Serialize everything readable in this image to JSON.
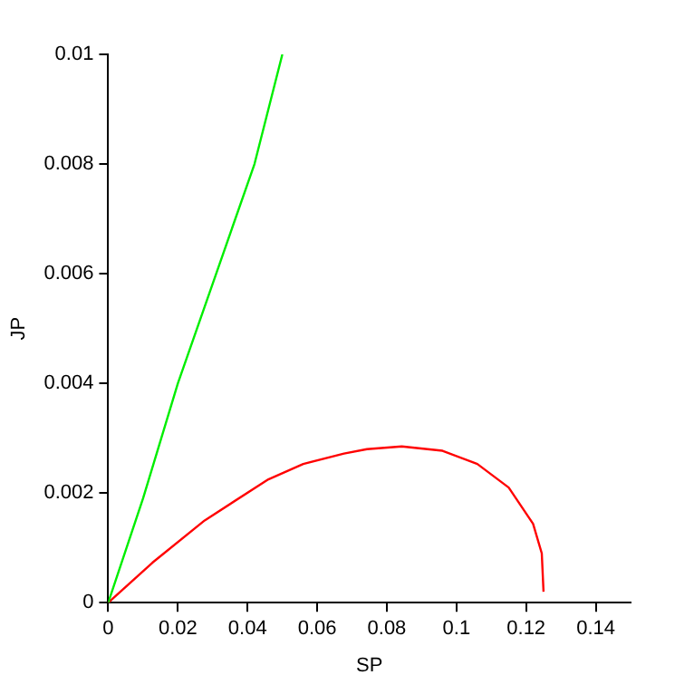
{
  "chart_data": {
    "type": "line",
    "xlabel": "SP",
    "ylabel": "JP",
    "xlim": [
      0,
      0.15
    ],
    "ylim": [
      0,
      0.01
    ],
    "xticks": [
      0,
      0.02,
      0.04,
      0.06,
      0.08,
      0.1,
      0.12,
      0.14
    ],
    "yticks": [
      0,
      0.002,
      0.004,
      0.006,
      0.008,
      0.01
    ],
    "grid": false,
    "legend": false,
    "marker": "none",
    "line_style": "solid",
    "series": [
      {
        "color": "#00ee00",
        "x": [
          0,
          0.01,
          0.02,
          0.031,
          0.042,
          0.05
        ],
        "values": [
          0,
          0.0019,
          0.004,
          0.006,
          0.008,
          0.01
        ]
      },
      {
        "color": "#ff0000",
        "x": [
          0,
          0.0127,
          0.0277,
          0.046,
          0.056,
          0.0677,
          0.0743,
          0.0843,
          0.096,
          0.106,
          0.115,
          0.122,
          0.1245,
          0.125
        ],
        "values": [
          0,
          0.00073,
          0.0015,
          0.00225,
          0.00253,
          0.00272,
          0.0028,
          0.00285,
          0.00277,
          0.00253,
          0.0021,
          0.00144,
          0.0009,
          0.0002
        ]
      }
    ]
  }
}
